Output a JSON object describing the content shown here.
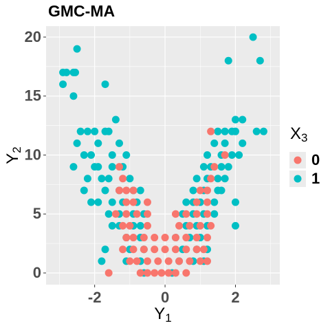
{
  "chart_data": {
    "type": "scatter",
    "title": "GMC-MA",
    "x_label": {
      "base": "Y",
      "sub": "1"
    },
    "y_label": {
      "base": "Y",
      "sub": "2"
    },
    "legend_title": {
      "base": "X",
      "sub": "3"
    },
    "legend_position": "right",
    "xlim": [
      -3.38,
      3.26
    ],
    "ylim": [
      -0.99,
      20.93
    ],
    "xticks": [
      -2,
      0,
      2
    ],
    "yticks": [
      0,
      5,
      10,
      15,
      20
    ],
    "x_minor_ticks": [
      -3,
      -1,
      1,
      3
    ],
    "y_minor_ticks": [
      2.5,
      7.5,
      12.5,
      17.5
    ],
    "grid": true,
    "series": [
      {
        "name": "0",
        "color": "#F8766D",
        "x": [
          1.3,
          1.7,
          -1.3,
          1.4,
          -1.2,
          1.3,
          -1.3,
          -1.1,
          -0.9,
          1.0,
          1.2,
          -1.1,
          -0.9,
          -0.5,
          0.9,
          1.2,
          -1.4,
          -1.1,
          -0.8,
          -0.5,
          0.3,
          0.6,
          0.9,
          1.2,
          -1.2,
          -1.0,
          -0.5,
          0.4,
          0.7,
          1.0,
          1.3,
          -1.1,
          -0.9,
          -0.6,
          -0.3,
          0,
          0.3,
          0.6,
          0.9,
          1.2,
          -1.2,
          -0.9,
          -0.6,
          -0.3,
          0,
          0.3,
          0.6,
          0.9,
          1.1,
          -1.0,
          -0.8,
          -0.5,
          -0.2,
          0.1,
          0.4,
          0.7,
          1.0,
          1.2,
          -1.6,
          -0.7,
          -0.5,
          -0.3,
          -0.1,
          0.1,
          0.3,
          0.6
        ],
        "values": [
          12,
          10,
          9,
          9,
          8,
          8,
          7,
          7,
          7,
          7,
          7,
          6,
          6,
          6,
          6,
          6,
          5,
          5,
          5,
          5,
          5,
          5,
          5,
          5,
          4,
          4,
          4,
          4,
          4,
          4,
          4,
          3,
          3,
          3,
          3,
          3,
          3,
          3,
          3,
          3,
          2,
          2,
          2,
          2,
          2,
          2,
          2,
          2,
          2,
          1,
          1,
          1,
          1,
          1,
          1,
          1,
          1,
          1,
          0,
          0,
          0,
          0,
          0,
          0,
          0,
          0
        ]
      },
      {
        "name": "1",
        "color": "#00BFC4",
        "x": [
          -2.9,
          -2.8,
          -2.6,
          -2.55,
          -2.9,
          -2.6,
          -2.5,
          -1.7,
          2.5,
          1.8,
          2.7,
          -1.4,
          2.0,
          2.2,
          -2.4,
          -2.2,
          -2.0,
          -1.7,
          -1.6,
          1.5,
          1.7,
          1.9,
          2.0,
          2.6,
          2.8,
          -2.5,
          -1.9,
          -1.3,
          1.4,
          1.7,
          2.2,
          -2.3,
          -2.1,
          -1.5,
          -1.1,
          1.2,
          1.6,
          1.9,
          2.1,
          -2.6,
          -2.0,
          -1.9,
          -1.5,
          -1.2,
          1.1,
          1.3,
          1.6,
          1.8,
          -2.2,
          -1.8,
          -1.6,
          -1.0,
          0.9,
          1.2,
          1.5,
          1.7,
          -2.3,
          -1.7,
          -1.3,
          -0.9,
          -0.7,
          0.8,
          1.1,
          1.5,
          1.6,
          -2.1,
          -1.9,
          -1.5,
          -1.2,
          -0.8,
          0.6,
          0.8,
          1.0,
          1.4,
          2.0,
          -1.6,
          -1.3,
          -0.9,
          -0.6,
          0.5,
          0.8,
          1.1,
          1.4,
          -1.5,
          -1.3,
          -0.9,
          -0.7,
          0.6,
          0.9,
          1.2,
          2.0,
          -1.1,
          -0.7,
          0.3,
          0.7,
          1.0,
          -1.7,
          -1.0,
          -0.6,
          0.5,
          0.9,
          1.2,
          -1.8,
          -1.1,
          -0.7,
          0.4,
          0.8,
          1.1,
          -0.6,
          0.2
        ],
        "values": [
          17,
          17,
          17,
          17,
          16,
          15,
          19,
          16,
          20,
          18,
          18,
          13,
          13,
          13,
          12,
          12,
          12,
          12,
          12,
          12,
          12,
          12,
          12,
          12,
          12,
          11,
          11,
          11,
          11,
          11,
          11,
          10,
          10,
          10,
          10,
          10,
          10,
          10,
          10,
          9,
          9,
          9,
          9,
          9,
          9,
          9,
          9,
          9,
          8,
          8,
          8,
          8,
          8,
          8,
          8,
          8,
          7,
          7,
          7,
          7,
          7,
          7,
          7,
          7,
          7,
          6,
          6,
          6,
          6,
          6,
          6,
          6,
          6,
          6,
          6,
          5,
          5,
          5,
          5,
          5,
          5,
          5,
          5,
          4,
          4,
          4,
          4,
          4,
          4,
          4,
          4,
          3,
          3,
          3,
          3,
          3,
          2,
          2,
          2,
          2,
          2,
          2,
          1,
          1,
          1,
          1,
          1,
          1,
          0,
          0
        ]
      }
    ]
  }
}
